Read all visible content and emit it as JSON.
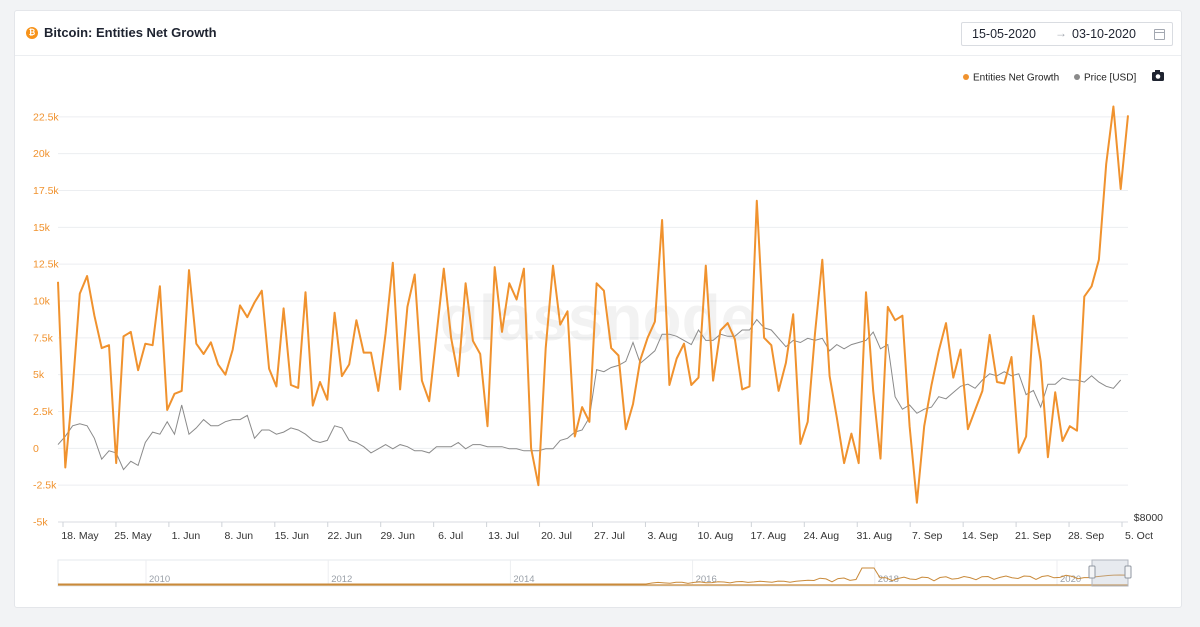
{
  "header": {
    "title": "Bitcoin: Entities Net Growth",
    "date_from": "15-05-2020",
    "date_arrow": "→",
    "date_to": "03-10-2020",
    "icons": {
      "coin": "bitcoin-icon",
      "calendar": "calendar-icon",
      "camera": "camera-icon"
    },
    "coin_glyph": "₿"
  },
  "watermark": "glassnode",
  "colors": {
    "growth": "#f0922e",
    "price": "#8a8a8a",
    "brush": "#c98a3a"
  },
  "chart_data": {
    "type": "line",
    "title": "Bitcoin: Entities Net Growth",
    "legend_position": "top-right",
    "grid": true,
    "ylim": [
      -5000,
      25000
    ],
    "y_ticks": [
      "22.5k",
      "20k",
      "17.5k",
      "15k",
      "12.5k",
      "10k",
      "7.5k",
      "5k",
      "2.5k",
      "0",
      "-2.5k",
      "-5k"
    ],
    "right_axis_label": "$8000",
    "x_range": [
      "2020-05-15",
      "2020-10-05"
    ],
    "x_ticks": [
      "18. May",
      "25. May",
      "1. Jun",
      "8. Jun",
      "15. Jun",
      "22. Jun",
      "29. Jun",
      "6. Jul",
      "13. Jul",
      "20. Jul",
      "27. Jul",
      "3. Aug",
      "10. Aug",
      "17. Aug",
      "24. Aug",
      "31. Aug",
      "7. Sep",
      "14. Sep",
      "21. Sep",
      "28. Sep",
      "5. Oct"
    ],
    "series": [
      {
        "name": "Entities Net Growth",
        "axis": "left",
        "values": [
          11300,
          -1300,
          4000,
          10500,
          11700,
          9000,
          6800,
          7000,
          -1000,
          7600,
          7900,
          5300,
          7100,
          7000,
          11000,
          2600,
          3700,
          3900,
          12100,
          7100,
          6400,
          7200,
          5700,
          5000,
          6700,
          9700,
          8900,
          9900,
          10700,
          5400,
          4200,
          9500,
          4300,
          4100,
          10600,
          2900,
          4500,
          3300,
          9200,
          4900,
          5700,
          8700,
          6500,
          6500,
          3900,
          7800,
          12600,
          4000,
          9600,
          11800,
          4600,
          3200,
          7700,
          12200,
          7500,
          4900,
          11200,
          7300,
          6400,
          1500,
          12300,
          7900,
          11200,
          10100,
          12200,
          0,
          -2500,
          6800,
          12400,
          8400,
          9300,
          800,
          2800,
          1800,
          11200,
          10700,
          6800,
          6300,
          1300,
          3000,
          6000,
          7500,
          8600,
          15500,
          4300,
          6100,
          7100,
          4300,
          4800,
          12400,
          4600,
          8000,
          8500,
          7400,
          4000,
          4200,
          16800,
          7500,
          7000,
          3900,
          5800,
          9100,
          300,
          1800,
          7800,
          12800,
          4900,
          2100,
          -1000,
          1000,
          -1000,
          10600,
          3900,
          -700,
          9600,
          8700,
          9000,
          1500,
          -3700,
          1500,
          4300,
          6600,
          8500,
          4800,
          6700,
          1300,
          2600,
          3900,
          7700,
          4500,
          4400,
          6200,
          -300,
          800,
          9000,
          5900,
          -600,
          3800,
          500,
          1500,
          1200,
          10300,
          11000,
          12800,
          19300,
          23200,
          17600,
          22600
        ]
      },
      {
        "name": "Price [USD]",
        "axis": "right",
        "values": [
          9250,
          9450,
          9700,
          9750,
          9700,
          9400,
          8900,
          9100,
          9050,
          8650,
          8850,
          8750,
          9300,
          9550,
          9500,
          9800,
          9500,
          10200,
          9500,
          9650,
          9850,
          9700,
          9700,
          9800,
          9850,
          9850,
          9950,
          9400,
          9600,
          9600,
          9500,
          9550,
          9650,
          9600,
          9500,
          9350,
          9300,
          9350,
          9700,
          9650,
          9350,
          9300,
          9200,
          9050,
          9150,
          9250,
          9150,
          9250,
          9200,
          9100,
          9100,
          9050,
          9200,
          9200,
          9200,
          9300,
          9150,
          9250,
          9250,
          9200,
          9200,
          9200,
          9150,
          9150,
          9100,
          9100,
          9100,
          9150,
          9150,
          9350,
          9400,
          9550,
          9600,
          9900,
          11050,
          11000,
          11100,
          11150,
          11250,
          11700,
          11200,
          11350,
          11500,
          11900,
          11900,
          11850,
          11750,
          11650,
          12000,
          11750,
          11750,
          11900,
          11850,
          11850,
          12000,
          12000,
          12250,
          12050,
          12000,
          11800,
          11600,
          11750,
          11700,
          11800,
          11750,
          11800,
          11500,
          11650,
          11550,
          11650,
          11700,
          11750,
          11950,
          11550,
          11650,
          10400,
          10100,
          10200,
          10000,
          10100,
          10150,
          10400,
          10350,
          10500,
          10650,
          10700,
          10600,
          10800,
          10950,
          10900,
          11000,
          10900,
          10950,
          10450,
          10550,
          10150,
          10700,
          10700,
          10850,
          10800,
          10800,
          10750,
          10900,
          10750,
          10650,
          10600,
          10800
        ]
      }
    ],
    "navigator": {
      "x_ticks": [
        "2010",
        "2012",
        "2014",
        "2016",
        "2018",
        "2020"
      ]
    }
  }
}
